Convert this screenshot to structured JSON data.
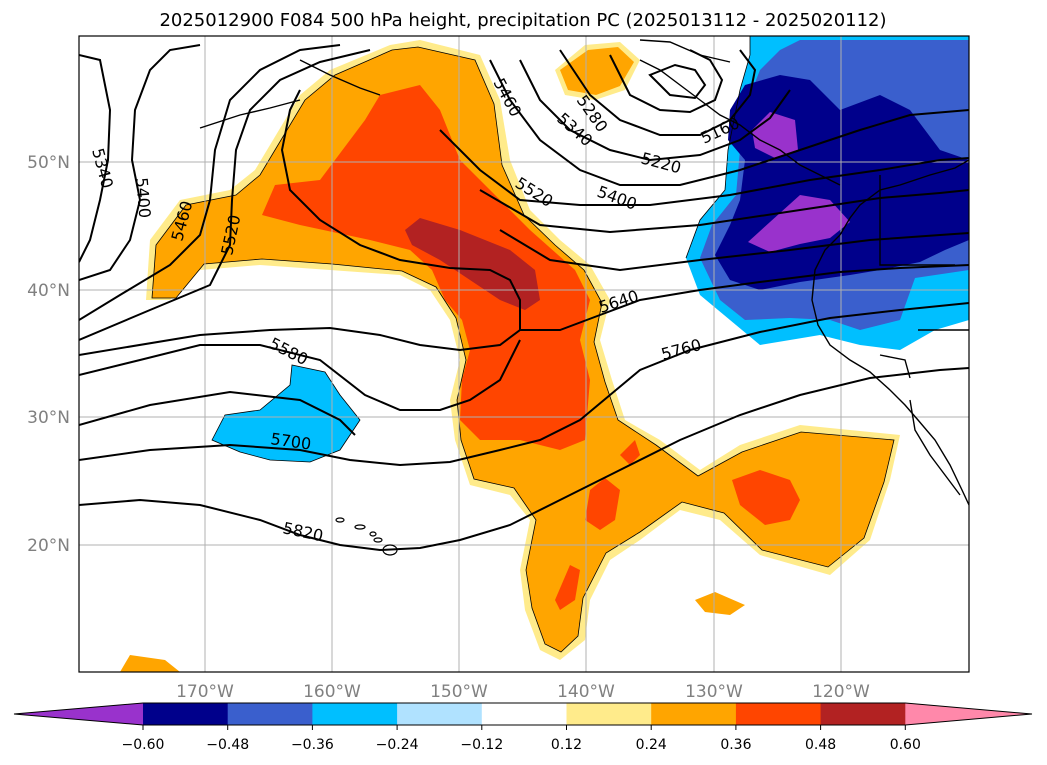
{
  "title": "2025012900 F084 500 hPa height, precipitation PC (2025013112 - 2025020112)",
  "lat_labels": [
    "50°N",
    "40°N",
    "30°N",
    "20°N"
  ],
  "lon_labels": [
    "170°W",
    "160°W",
    "150°W",
    "140°W",
    "130°W",
    "120°W"
  ],
  "contour_labels": [
    "5340",
    "5400",
    "5460",
    "5520",
    "5460",
    "5280",
    "5340",
    "5220",
    "5160",
    "5520",
    "5400",
    "5640",
    "5760",
    "5580",
    "5700",
    "5820"
  ],
  "colorbar": {
    "ticks": [
      "−0.60",
      "−0.48",
      "−0.36",
      "−0.24",
      "−0.12",
      "0.12",
      "0.24",
      "0.36",
      "0.48",
      "0.60"
    ],
    "colors": [
      "#9932cc",
      "#00008b",
      "#3a5fcd",
      "#00bfff",
      "#b0e2ff",
      "#ffffff",
      "#ffeb8b",
      "#ffa500",
      "#ff4500",
      "#b22222",
      "#ff88aa"
    ]
  },
  "fill_colors": {
    "orange": "#ffa500",
    "light_yellow": "#ffeb8b",
    "red_orange": "#ff4500",
    "firebrick": "#b22222",
    "deep_sky": "#00bfff",
    "royal_blue": "#3a5fcd",
    "navy": "#00008b",
    "purple": "#9932cc"
  }
}
